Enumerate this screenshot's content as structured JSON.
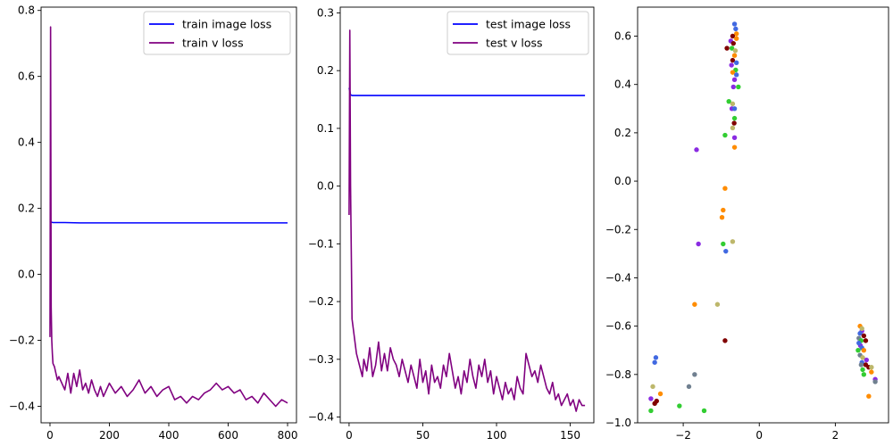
{
  "chart_data": [
    {
      "type": "line",
      "xlim": [
        -30,
        830
      ],
      "ylim": [
        -0.45,
        0.81
      ],
      "xticks": [
        0,
        200,
        400,
        600,
        800
      ],
      "yticks": [
        -0.4,
        -0.2,
        0.0,
        0.2,
        0.4,
        0.6,
        0.8
      ],
      "xtick_labels": [
        "0",
        "200",
        "400",
        "600",
        "800"
      ],
      "ytick_labels": [
        "−0.4",
        "−0.2",
        "0.0",
        "0.2",
        "0.4",
        "0.6",
        "0.8"
      ],
      "legend": "top-right",
      "series": [
        {
          "name": "train image loss",
          "color": "#0000ff",
          "x": [
            0,
            2,
            5,
            10,
            50,
            100,
            200,
            300,
            400,
            500,
            600,
            700,
            800
          ],
          "y": [
            0.16,
            0.158,
            0.158,
            0.157,
            0.157,
            0.156,
            0.156,
            0.156,
            0.156,
            0.156,
            0.156,
            0.156,
            0.156
          ]
        },
        {
          "name": "train v loss",
          "color": "#800080",
          "x": [
            0,
            2,
            4,
            6,
            8,
            10,
            15,
            20,
            25,
            30,
            40,
            50,
            60,
            70,
            80,
            90,
            100,
            110,
            120,
            130,
            140,
            150,
            160,
            170,
            180,
            190,
            200,
            220,
            240,
            260,
            280,
            300,
            320,
            340,
            360,
            380,
            400,
            420,
            440,
            460,
            480,
            500,
            520,
            540,
            560,
            580,
            600,
            620,
            640,
            660,
            680,
            700,
            720,
            740,
            760,
            780,
            800
          ],
          "y": [
            -0.19,
            0.75,
            -0.1,
            -0.2,
            -0.24,
            -0.27,
            -0.28,
            -0.3,
            -0.32,
            -0.31,
            -0.33,
            -0.35,
            -0.3,
            -0.36,
            -0.3,
            -0.34,
            -0.29,
            -0.35,
            -0.33,
            -0.36,
            -0.32,
            -0.35,
            -0.37,
            -0.34,
            -0.37,
            -0.35,
            -0.33,
            -0.36,
            -0.34,
            -0.37,
            -0.35,
            -0.32,
            -0.36,
            -0.34,
            -0.37,
            -0.35,
            -0.34,
            -0.38,
            -0.37,
            -0.39,
            -0.37,
            -0.38,
            -0.36,
            -0.35,
            -0.33,
            -0.35,
            -0.34,
            -0.36,
            -0.35,
            -0.38,
            -0.37,
            -0.39,
            -0.36,
            -0.38,
            -0.4,
            -0.38,
            -0.39
          ]
        }
      ]
    },
    {
      "type": "line",
      "xlim": [
        -6,
        166
      ],
      "ylim": [
        -0.41,
        0.31
      ],
      "xticks": [
        0,
        50,
        100,
        150
      ],
      "yticks": [
        -0.4,
        -0.3,
        -0.2,
        -0.1,
        0.0,
        0.1,
        0.2,
        0.3
      ],
      "xtick_labels": [
        "0",
        "50",
        "100",
        "150"
      ],
      "ytick_labels": [
        "−0.4",
        "−0.3",
        "−0.2",
        "−0.1",
        "0.0",
        "0.1",
        "0.2",
        "0.3"
      ],
      "legend": "top-right",
      "series": [
        {
          "name": "test image loss",
          "color": "#0000ff",
          "x": [
            0,
            0.5,
            1,
            2,
            10,
            50,
            100,
            160
          ],
          "y": [
            0.17,
            0.165,
            0.158,
            0.157,
            0.157,
            0.157,
            0.157,
            0.157
          ]
        },
        {
          "name": "test v loss",
          "color": "#800080",
          "x": [
            0,
            0.5,
            1,
            2,
            3,
            4,
            5,
            6,
            7,
            8,
            9,
            10,
            12,
            14,
            16,
            18,
            20,
            22,
            24,
            26,
            28,
            30,
            32,
            34,
            36,
            38,
            40,
            42,
            44,
            46,
            48,
            50,
            52,
            54,
            56,
            58,
            60,
            62,
            64,
            66,
            68,
            70,
            72,
            74,
            76,
            78,
            80,
            82,
            84,
            86,
            88,
            90,
            92,
            94,
            96,
            98,
            100,
            102,
            104,
            106,
            108,
            110,
            112,
            114,
            116,
            118,
            120,
            122,
            124,
            126,
            128,
            130,
            132,
            134,
            136,
            138,
            140,
            142,
            144,
            146,
            148,
            150,
            152,
            154,
            156,
            158,
            160
          ],
          "y": [
            -0.05,
            0.27,
            0.0,
            -0.23,
            -0.25,
            -0.27,
            -0.29,
            -0.3,
            -0.31,
            -0.32,
            -0.33,
            -0.3,
            -0.32,
            -0.28,
            -0.33,
            -0.31,
            -0.27,
            -0.32,
            -0.29,
            -0.32,
            -0.28,
            -0.3,
            -0.31,
            -0.33,
            -0.3,
            -0.32,
            -0.34,
            -0.31,
            -0.33,
            -0.35,
            -0.3,
            -0.34,
            -0.32,
            -0.36,
            -0.31,
            -0.34,
            -0.33,
            -0.35,
            -0.31,
            -0.33,
            -0.29,
            -0.32,
            -0.35,
            -0.33,
            -0.36,
            -0.32,
            -0.34,
            -0.3,
            -0.33,
            -0.35,
            -0.31,
            -0.33,
            -0.3,
            -0.34,
            -0.32,
            -0.36,
            -0.33,
            -0.35,
            -0.37,
            -0.34,
            -0.36,
            -0.35,
            -0.37,
            -0.33,
            -0.35,
            -0.36,
            -0.29,
            -0.31,
            -0.33,
            -0.32,
            -0.34,
            -0.31,
            -0.33,
            -0.35,
            -0.36,
            -0.34,
            -0.37,
            -0.36,
            -0.38,
            -0.37,
            -0.36,
            -0.38,
            -0.37,
            -0.39,
            -0.37,
            -0.38,
            -0.38
          ]
        }
      ]
    },
    {
      "type": "scatter",
      "xlim": [
        -3.2,
        3.4
      ],
      "ylim": [
        -1.0,
        0.72
      ],
      "xticks": [
        -2,
        0,
        2
      ],
      "yticks": [
        -1.0,
        -0.8,
        -0.6,
        -0.4,
        -0.2,
        0.0,
        0.2,
        0.4,
        0.6
      ],
      "xtick_labels": [
        "−2",
        "0",
        "2"
      ],
      "ytick_labels": [
        "−1.0",
        "−0.8",
        "−0.6",
        "−0.4",
        "−0.2",
        "0.0",
        "0.2",
        "0.4",
        "0.6"
      ],
      "points": [
        {
          "x": -0.65,
          "y": 0.65,
          "c": "#4169e1"
        },
        {
          "x": -0.62,
          "y": 0.63,
          "c": "#4169e1"
        },
        {
          "x": -0.6,
          "y": 0.61,
          "c": "#ff8c00"
        },
        {
          "x": -0.7,
          "y": 0.6,
          "c": "#800000"
        },
        {
          "x": -0.75,
          "y": 0.58,
          "c": "#8a2be2"
        },
        {
          "x": -0.68,
          "y": 0.57,
          "c": "#800000"
        },
        {
          "x": -0.6,
          "y": 0.59,
          "c": "#ff8c00"
        },
        {
          "x": -0.72,
          "y": 0.55,
          "c": "#32cd32"
        },
        {
          "x": -0.85,
          "y": 0.55,
          "c": "#800000"
        },
        {
          "x": -0.63,
          "y": 0.54,
          "c": "#bdb76b"
        },
        {
          "x": -0.65,
          "y": 0.52,
          "c": "#ff8c00"
        },
        {
          "x": -0.7,
          "y": 0.5,
          "c": "#800000"
        },
        {
          "x": -0.6,
          "y": 0.49,
          "c": "#4169e1"
        },
        {
          "x": -0.73,
          "y": 0.48,
          "c": "#8a2be2"
        },
        {
          "x": -0.62,
          "y": 0.46,
          "c": "#32cd32"
        },
        {
          "x": -0.7,
          "y": 0.45,
          "c": "#ff8c00"
        },
        {
          "x": -0.6,
          "y": 0.44,
          "c": "#4169e1"
        },
        {
          "x": -0.65,
          "y": 0.42,
          "c": "#8a2be2"
        },
        {
          "x": -0.55,
          "y": 0.39,
          "c": "#32cd32"
        },
        {
          "x": -0.68,
          "y": 0.39,
          "c": "#8a2be2"
        },
        {
          "x": -0.8,
          "y": 0.33,
          "c": "#32cd32"
        },
        {
          "x": -0.7,
          "y": 0.32,
          "c": "#bdb76b"
        },
        {
          "x": -0.72,
          "y": 0.3,
          "c": "#8a2be2"
        },
        {
          "x": -0.65,
          "y": 0.3,
          "c": "#4169e1"
        },
        {
          "x": -0.65,
          "y": 0.26,
          "c": "#32cd32"
        },
        {
          "x": -0.66,
          "y": 0.24,
          "c": "#800000"
        },
        {
          "x": -0.7,
          "y": 0.22,
          "c": "#bdb76b"
        },
        {
          "x": -0.9,
          "y": 0.19,
          "c": "#32cd32"
        },
        {
          "x": -0.65,
          "y": 0.18,
          "c": "#8a2be2"
        },
        {
          "x": -0.65,
          "y": 0.14,
          "c": "#ff8c00"
        },
        {
          "x": -1.65,
          "y": 0.13,
          "c": "#8a2be2"
        },
        {
          "x": -0.9,
          "y": -0.03,
          "c": "#ff8c00"
        },
        {
          "x": -0.95,
          "y": -0.12,
          "c": "#ff8c00"
        },
        {
          "x": -0.98,
          "y": -0.15,
          "c": "#ff8c00"
        },
        {
          "x": -0.7,
          "y": -0.25,
          "c": "#bdb76b"
        },
        {
          "x": -0.95,
          "y": -0.26,
          "c": "#32cd32"
        },
        {
          "x": -1.6,
          "y": -0.26,
          "c": "#8a2be2"
        },
        {
          "x": -0.88,
          "y": -0.29,
          "c": "#4169e1"
        },
        {
          "x": -1.7,
          "y": -0.51,
          "c": "#ff8c00"
        },
        {
          "x": -1.1,
          "y": -0.51,
          "c": "#bdb76b"
        },
        {
          "x": -0.9,
          "y": -0.66,
          "c": "#800000"
        },
        {
          "x": -2.8,
          "y": -0.85,
          "c": "#bdb76b"
        },
        {
          "x": -2.85,
          "y": -0.9,
          "c": "#8a2be2"
        },
        {
          "x": -2.72,
          "y": -0.73,
          "c": "#4169e1"
        },
        {
          "x": -2.75,
          "y": -0.75,
          "c": "#4169e1"
        },
        {
          "x": -2.6,
          "y": -0.88,
          "c": "#ff8c00"
        },
        {
          "x": -2.7,
          "y": -0.91,
          "c": "#800000"
        },
        {
          "x": -2.75,
          "y": -0.92,
          "c": "#800000"
        },
        {
          "x": -2.85,
          "y": -0.95,
          "c": "#32cd32"
        },
        {
          "x": -2.1,
          "y": -0.93,
          "c": "#32cd32"
        },
        {
          "x": -1.85,
          "y": -0.85,
          "c": "#708090"
        },
        {
          "x": -1.7,
          "y": -0.8,
          "c": "#708090"
        },
        {
          "x": -1.45,
          "y": -0.95,
          "c": "#32cd32"
        },
        {
          "x": 2.65,
          "y": -0.6,
          "c": "#ff8c00"
        },
        {
          "x": 2.7,
          "y": -0.62,
          "c": "#8a2be2"
        },
        {
          "x": 2.65,
          "y": -0.63,
          "c": "#4169e1"
        },
        {
          "x": 2.75,
          "y": -0.64,
          "c": "#800000"
        },
        {
          "x": 2.62,
          "y": -0.65,
          "c": "#708090"
        },
        {
          "x": 2.68,
          "y": -0.66,
          "c": "#32cd32"
        },
        {
          "x": 2.8,
          "y": -0.66,
          "c": "#800000"
        },
        {
          "x": 2.66,
          "y": -0.68,
          "c": "#8a2be2"
        },
        {
          "x": 2.7,
          "y": -0.69,
          "c": "#4169e1"
        },
        {
          "x": 2.6,
          "y": -0.7,
          "c": "#32cd32"
        },
        {
          "x": 2.75,
          "y": -0.7,
          "c": "#ff8c00"
        },
        {
          "x": 2.65,
          "y": -0.72,
          "c": "#708090"
        },
        {
          "x": 2.72,
          "y": -0.73,
          "c": "#bdb76b"
        },
        {
          "x": 2.82,
          "y": -0.74,
          "c": "#8a2be2"
        },
        {
          "x": 2.7,
          "y": -0.75,
          "c": "#4169e1"
        },
        {
          "x": 2.8,
          "y": -0.76,
          "c": "#800000"
        },
        {
          "x": 2.88,
          "y": -0.77,
          "c": "#800000"
        },
        {
          "x": 2.95,
          "y": -0.77,
          "c": "#bdb76b"
        },
        {
          "x": 2.72,
          "y": -0.78,
          "c": "#32cd32"
        },
        {
          "x": 2.95,
          "y": -0.79,
          "c": "#ff8c00"
        },
        {
          "x": 2.75,
          "y": -0.8,
          "c": "#32cd32"
        },
        {
          "x": 2.68,
          "y": -0.76,
          "c": "#708090"
        },
        {
          "x": 3.05,
          "y": -0.82,
          "c": "#8a2be2"
        },
        {
          "x": 3.05,
          "y": -0.83,
          "c": "#708090"
        },
        {
          "x": 2.88,
          "y": -0.89,
          "c": "#ff8c00"
        },
        {
          "x": 2.62,
          "y": -0.67,
          "c": "#4169e1"
        },
        {
          "x": 2.7,
          "y": -0.61,
          "c": "#bdb76b"
        }
      ]
    }
  ]
}
